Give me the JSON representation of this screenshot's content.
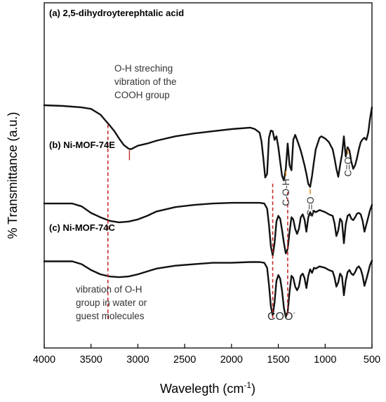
{
  "chart_data": {
    "type": "line",
    "title": "",
    "xlabel": "Wavelegth (cm",
    "xlabel_sup": "-1",
    "xlabel_suffix": ")",
    "ylabel": "% Transmittance (a.u.)",
    "xlim": [
      4000,
      500
    ],
    "x_reversed": true,
    "xticks": [
      4000,
      3500,
      3000,
      2500,
      2000,
      1500,
      1000,
      500
    ],
    "yticks_shown": false,
    "grid": false,
    "legend": "none",
    "series": [
      {
        "name": "(a) 2,5-dihydroyterephtalic acid",
        "x": [
          4000,
          3800,
          3600,
          3500,
          3400,
          3300,
          3250,
          3200,
          3150,
          3100,
          3080,
          3060,
          3000,
          2900,
          2800,
          2600,
          2400,
          2200,
          2000,
          1800,
          1750,
          1700,
          1680,
          1660,
          1640,
          1620,
          1600,
          1580,
          1560,
          1540,
          1520,
          1500,
          1480,
          1460,
          1440,
          1420,
          1400,
          1380,
          1360,
          1340,
          1320,
          1300,
          1280,
          1260,
          1240,
          1220,
          1200,
          1180,
          1160,
          1140,
          1120,
          1100,
          1080,
          1060,
          1040,
          1000,
          960,
          920,
          900,
          880,
          860,
          840,
          820,
          800,
          780,
          760,
          740,
          720,
          700,
          680,
          660,
          640,
          620,
          600,
          580,
          560,
          540,
          520,
          500
        ],
        "y": [
          3.33,
          3.32,
          3.3,
          3.28,
          3.2,
          3.05,
          2.97,
          2.87,
          2.78,
          2.73,
          2.72,
          2.73,
          2.77,
          2.8,
          2.84,
          2.9,
          2.94,
          2.97,
          3.0,
          3.02,
          3.0,
          2.95,
          2.83,
          2.6,
          2.33,
          2.38,
          2.88,
          2.98,
          2.97,
          2.85,
          2.9,
          2.75,
          2.55,
          2.35,
          2.29,
          2.45,
          2.8,
          2.5,
          2.43,
          2.85,
          2.92,
          2.85,
          2.78,
          2.7,
          2.6,
          2.5,
          2.38,
          2.24,
          2.2,
          2.35,
          2.55,
          2.72,
          2.8,
          2.88,
          2.9,
          2.87,
          2.82,
          2.72,
          2.6,
          2.45,
          2.34,
          2.5,
          2.65,
          2.9,
          2.62,
          2.75,
          2.7,
          2.55,
          2.45,
          2.5,
          2.6,
          2.72,
          2.82,
          2.86,
          2.88,
          2.85,
          2.95,
          3.15,
          3.3
        ]
      },
      {
        "name": "(b) Ni-MOF-74E",
        "x": [
          4000,
          3800,
          3700,
          3600,
          3500,
          3400,
          3300,
          3200,
          3100,
          3000,
          2900,
          2800,
          2600,
          2400,
          2200,
          2000,
          1800,
          1700,
          1650,
          1620,
          1600,
          1580,
          1560,
          1540,
          1520,
          1500,
          1480,
          1460,
          1440,
          1420,
          1400,
          1380,
          1360,
          1340,
          1320,
          1300,
          1280,
          1260,
          1240,
          1220,
          1200,
          1180,
          1160,
          1140,
          1120,
          1100,
          1060,
          1000,
          960,
          920,
          900,
          880,
          860,
          840,
          820,
          800,
          780,
          760,
          740,
          720,
          700,
          680,
          660,
          640,
          620,
          600,
          580,
          560,
          540,
          520,
          500
        ],
        "y": [
          1.97,
          1.97,
          1.97,
          1.93,
          1.84,
          1.78,
          1.73,
          1.71,
          1.72,
          1.75,
          1.8,
          1.86,
          1.92,
          1.95,
          1.97,
          1.98,
          1.98,
          1.98,
          1.97,
          1.9,
          1.68,
          1.38,
          1.25,
          1.42,
          1.72,
          1.8,
          1.76,
          1.6,
          1.42,
          1.28,
          1.34,
          1.58,
          1.78,
          1.75,
          1.62,
          1.55,
          1.62,
          1.78,
          1.82,
          1.75,
          1.58,
          1.78,
          1.85,
          1.8,
          1.87,
          1.85,
          1.88,
          1.85,
          1.82,
          1.8,
          1.7,
          1.52,
          1.6,
          1.76,
          1.72,
          1.42,
          1.68,
          1.8,
          1.82,
          1.76,
          1.74,
          1.78,
          1.83,
          1.84,
          1.82,
          1.73,
          1.58,
          1.68,
          1.78,
          1.88,
          1.95
        ]
      },
      {
        "name": "(c) Ni-MOF-74C",
        "x": [
          4000,
          3800,
          3700,
          3600,
          3500,
          3400,
          3300,
          3200,
          3100,
          3000,
          2900,
          2800,
          2600,
          2400,
          2200,
          2000,
          1800,
          1700,
          1650,
          1620,
          1600,
          1580,
          1560,
          1540,
          1520,
          1500,
          1480,
          1460,
          1440,
          1420,
          1400,
          1380,
          1360,
          1340,
          1320,
          1300,
          1280,
          1260,
          1240,
          1220,
          1200,
          1180,
          1160,
          1140,
          1120,
          1100,
          1060,
          1000,
          960,
          920,
          900,
          880,
          860,
          840,
          820,
          800,
          780,
          760,
          740,
          720,
          700,
          680,
          660,
          640,
          620,
          600,
          580,
          560,
          540,
          520,
          500
        ],
        "y": [
          1.17,
          1.17,
          1.17,
          1.13,
          1.05,
          0.99,
          0.96,
          0.95,
          0.96,
          0.99,
          1.03,
          1.07,
          1.11,
          1.13,
          1.15,
          1.15,
          1.16,
          1.16,
          1.15,
          1.08,
          0.85,
          0.55,
          0.42,
          0.6,
          0.9,
          0.98,
          0.93,
          0.76,
          0.52,
          0.4,
          0.47,
          0.75,
          0.97,
          0.94,
          0.82,
          0.77,
          0.82,
          0.97,
          1.0,
          0.94,
          0.8,
          0.97,
          1.06,
          1.01,
          1.08,
          1.07,
          1.1,
          1.08,
          1.05,
          1.03,
          0.95,
          0.82,
          0.88,
          1.0,
          0.96,
          0.7,
          0.9,
          1.02,
          1.05,
          1.0,
          0.98,
          1.02,
          1.08,
          1.1,
          1.06,
          0.97,
          0.83,
          0.92,
          1.02,
          1.12,
          1.18
        ]
      }
    ],
    "annotations": [
      {
        "id": "oh-stretching",
        "lines": [
          "O-H streching",
          "vibration of the",
          "COOH group"
        ]
      },
      {
        "id": "oh-water",
        "lines": [
          "vibration of O-H",
          "group in water or",
          "guest molecules"
        ]
      },
      {
        "id": "c-o-h",
        "text": "C-O-H",
        "x": 1420
      },
      {
        "id": "c-o-1",
        "text": "C=O",
        "x": 1160
      },
      {
        "id": "c-o-2",
        "text": "C=O",
        "x": 760
      },
      {
        "id": "coo",
        "text": "COO",
        "sup": "-"
      }
    ],
    "reference_lines": [
      {
        "x": 3320,
        "style": "dashed"
      },
      {
        "x": 3090,
        "style": "solid"
      },
      {
        "x": 1560,
        "style": "dashed"
      },
      {
        "x": 1400,
        "style": "dashed"
      }
    ]
  }
}
